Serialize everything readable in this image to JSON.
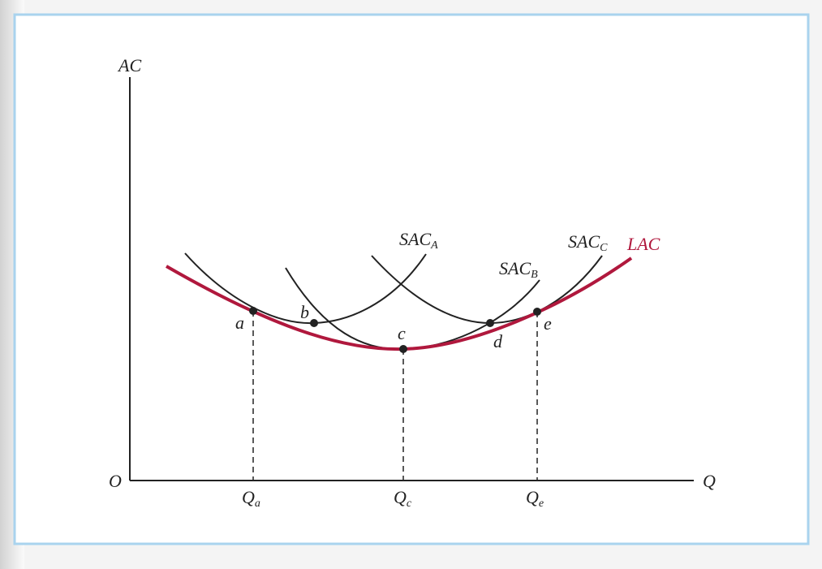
{
  "axes": {
    "y_label": "AC",
    "x_label": "Q",
    "origin": "O"
  },
  "x_markers": [
    {
      "base": "Q",
      "sub": "a"
    },
    {
      "base": "Q",
      "sub": "c"
    },
    {
      "base": "Q",
      "sub": "e"
    }
  ],
  "points": [
    "a",
    "b",
    "c",
    "d",
    "e"
  ],
  "curves": [
    {
      "base": "SAC",
      "sub": "A"
    },
    {
      "base": "SAC",
      "sub": "B"
    },
    {
      "base": "SAC",
      "sub": "C"
    },
    {
      "base": "LAC"
    }
  ]
}
